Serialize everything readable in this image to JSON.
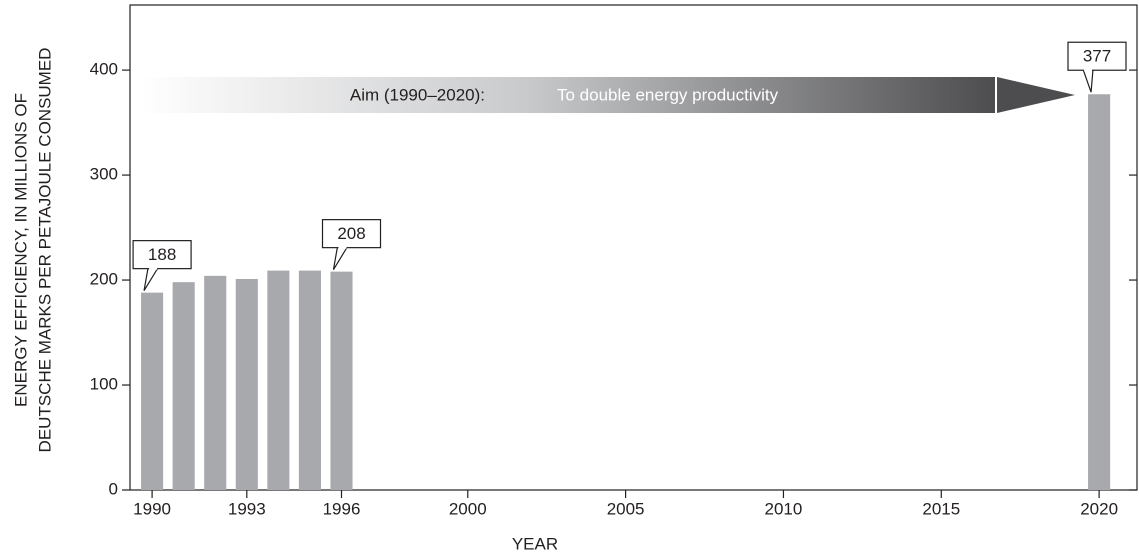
{
  "chart_data": {
    "type": "bar",
    "x": [
      1990,
      1991,
      1992,
      1993,
      1994,
      1995,
      1996,
      2020
    ],
    "values": [
      188,
      198,
      204,
      201,
      209,
      209,
      208,
      377
    ],
    "value_labels": [
      "188",
      null,
      null,
      null,
      null,
      null,
      "208",
      "377"
    ],
    "color": "#a7a9ac",
    "xlim": [
      1989.3,
      2021.2
    ],
    "xticks": [
      1990,
      1993,
      1996,
      2000,
      2005,
      2010,
      2015,
      2020
    ],
    "ylim": [
      0,
      462
    ],
    "yticks": [
      0,
      100,
      200,
      300,
      400
    ],
    "xlabel": "YEAR",
    "ylabel": [
      "ENERGY EFFICIENCY, IN MILLIONS OF",
      "DEUTSCHE MARKS PER PETAJOULE CONSUMED"
    ],
    "annotations": [
      "Aim (1990–2020):",
      "To double energy productivity"
    ]
  }
}
